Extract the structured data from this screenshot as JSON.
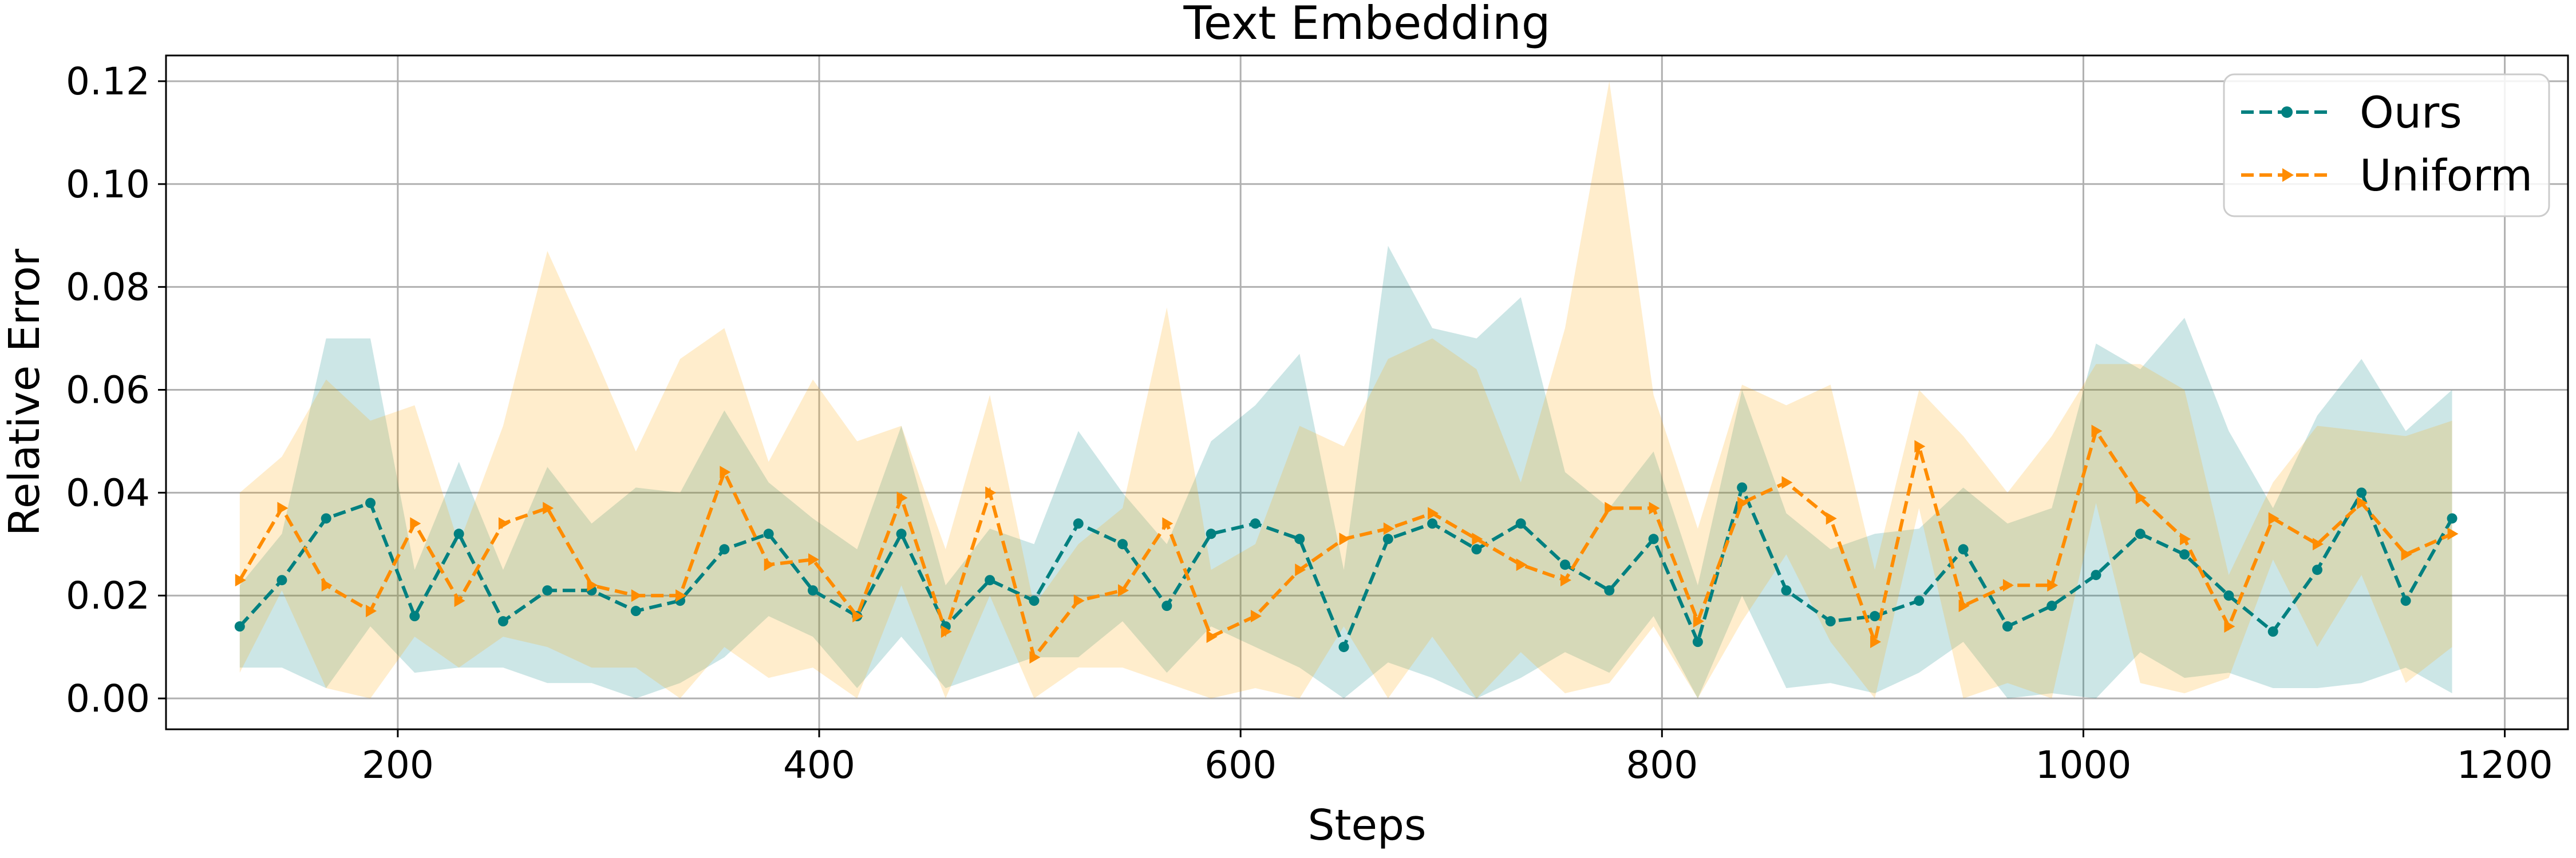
{
  "chart_data": {
    "type": "line",
    "title": "Text Embedding",
    "xlabel": "Steps",
    "ylabel": "Relative Error",
    "xlim": [
      90,
      1230
    ],
    "ylim": [
      -0.006,
      0.125
    ],
    "xticks": [
      200,
      400,
      600,
      800,
      1000,
      1200
    ],
    "yticks": [
      0.0,
      0.02,
      0.04,
      0.06,
      0.08,
      0.1,
      0.12
    ],
    "ytick_labels": [
      "0.00",
      "0.02",
      "0.04",
      "0.06",
      "0.08",
      "0.10",
      "0.12"
    ],
    "grid": true,
    "legend_position": "top-right",
    "x": [
      125,
      145,
      166,
      187,
      208,
      229,
      250,
      271,
      292,
      313,
      334,
      355,
      376,
      397,
      418,
      439,
      460,
      481,
      502,
      523,
      544,
      565,
      586,
      607,
      628,
      649,
      670,
      691,
      712,
      733,
      754,
      775,
      796,
      817,
      838,
      859,
      880,
      901,
      922,
      943,
      964,
      985,
      1006,
      1027,
      1048,
      1069,
      1090,
      1111,
      1132,
      1153,
      1175
    ],
    "series": [
      {
        "name": "Ours",
        "color": "#008080",
        "marker": "circle",
        "values": [
          0.014,
          0.023,
          0.035,
          0.038,
          0.016,
          0.032,
          0.015,
          0.021,
          0.021,
          0.017,
          0.019,
          0.029,
          0.032,
          0.021,
          0.016,
          0.032,
          0.014,
          0.023,
          0.019,
          0.034,
          0.03,
          0.018,
          0.032,
          0.034,
          0.031,
          0.01,
          0.031,
          0.034,
          0.029,
          0.034,
          0.026,
          0.021,
          0.031,
          0.011,
          0.041,
          0.021,
          0.015,
          0.016,
          0.019,
          0.029,
          0.014,
          0.018,
          0.024,
          0.032,
          0.028,
          0.02,
          0.013,
          0.025,
          0.04,
          0.019,
          0.035
        ],
        "band_upper": [
          0.022,
          0.032,
          0.07,
          0.07,
          0.025,
          0.046,
          0.025,
          0.045,
          0.034,
          0.041,
          0.04,
          0.056,
          0.042,
          0.035,
          0.029,
          0.053,
          0.022,
          0.033,
          0.03,
          0.052,
          0.04,
          0.03,
          0.05,
          0.057,
          0.067,
          0.025,
          0.088,
          0.072,
          0.07,
          0.078,
          0.044,
          0.037,
          0.048,
          0.022,
          0.06,
          0.036,
          0.029,
          0.032,
          0.033,
          0.041,
          0.034,
          0.037,
          0.069,
          0.064,
          0.074,
          0.052,
          0.037,
          0.055,
          0.066,
          0.052,
          0.06
        ],
        "band_lower": [
          0.006,
          0.006,
          0.002,
          0.014,
          0.005,
          0.006,
          0.006,
          0.003,
          0.003,
          0.0,
          0.003,
          0.008,
          0.016,
          0.012,
          0.002,
          0.012,
          0.002,
          0.005,
          0.008,
          0.008,
          0.015,
          0.005,
          0.014,
          0.01,
          0.006,
          0.0,
          0.007,
          0.004,
          0.0,
          0.004,
          0.009,
          0.005,
          0.016,
          0.0,
          0.02,
          0.002,
          0.003,
          0.001,
          0.005,
          0.011,
          0.0,
          0.001,
          0.0,
          0.009,
          0.004,
          0.005,
          0.002,
          0.002,
          0.003,
          0.006,
          0.001
        ]
      },
      {
        "name": "Uniform",
        "color": "#ff8c00",
        "marker": "triangle-right",
        "values": [
          0.023,
          0.037,
          0.022,
          0.017,
          0.034,
          0.019,
          0.034,
          0.037,
          0.022,
          0.02,
          0.02,
          0.044,
          0.026,
          0.027,
          0.016,
          0.039,
          0.013,
          0.04,
          0.008,
          0.019,
          0.021,
          0.034,
          0.012,
          0.016,
          0.025,
          0.031,
          0.033,
          0.036,
          0.031,
          0.026,
          0.023,
          0.037,
          0.037,
          0.015,
          0.038,
          0.042,
          0.035,
          0.011,
          0.049,
          0.018,
          0.022,
          0.022,
          0.052,
          0.039,
          0.031,
          0.014,
          0.035,
          0.03,
          0.038,
          0.028,
          0.032
        ],
        "band_upper": [
          0.04,
          0.047,
          0.062,
          0.054,
          0.057,
          0.03,
          0.053,
          0.087,
          0.068,
          0.048,
          0.066,
          0.072,
          0.046,
          0.062,
          0.05,
          0.053,
          0.029,
          0.059,
          0.018,
          0.03,
          0.037,
          0.076,
          0.025,
          0.03,
          0.053,
          0.049,
          0.066,
          0.07,
          0.064,
          0.042,
          0.072,
          0.12,
          0.059,
          0.033,
          0.061,
          0.057,
          0.061,
          0.025,
          0.06,
          0.051,
          0.04,
          0.051,
          0.065,
          0.065,
          0.06,
          0.024,
          0.042,
          0.053,
          0.052,
          0.051,
          0.054
        ],
        "band_lower": [
          0.005,
          0.021,
          0.002,
          0.0,
          0.012,
          0.006,
          0.012,
          0.01,
          0.006,
          0.006,
          0.0,
          0.01,
          0.004,
          0.006,
          0.0,
          0.022,
          0.0,
          0.02,
          0.0,
          0.006,
          0.006,
          0.003,
          0.0,
          0.002,
          0.0,
          0.014,
          0.0,
          0.012,
          0.0,
          0.009,
          0.001,
          0.003,
          0.014,
          0.0,
          0.015,
          0.028,
          0.011,
          0.0,
          0.037,
          0.0,
          0.003,
          0.0,
          0.038,
          0.003,
          0.001,
          0.004,
          0.027,
          0.01,
          0.024,
          0.003,
          0.01
        ]
      }
    ]
  }
}
